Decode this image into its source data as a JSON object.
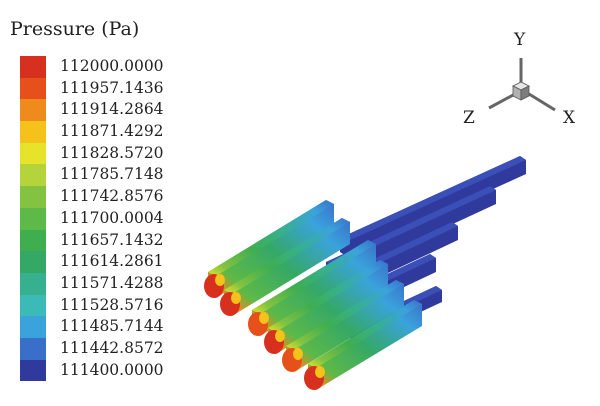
{
  "legend": {
    "title": "Pressure (Pa)",
    "entries": [
      {
        "value": "112000.0000",
        "color": "#d7301f"
      },
      {
        "value": "111957.1436",
        "color": "#e6501b"
      },
      {
        "value": "111914.2864",
        "color": "#ef8a1c"
      },
      {
        "value": "111871.4292",
        "color": "#f5c11b"
      },
      {
        "value": "111828.5720",
        "color": "#e6e32a"
      },
      {
        "value": "111785.7148",
        "color": "#b5d33a"
      },
      {
        "value": "111742.8576",
        "color": "#84c341"
      },
      {
        "value": "111700.0004",
        "color": "#5db948"
      },
      {
        "value": "111657.1432",
        "color": "#3fae4f"
      },
      {
        "value": "111614.2861",
        "color": "#35a866"
      },
      {
        "value": "111571.4288",
        "color": "#36b08e"
      },
      {
        "value": "111528.5716",
        "color": "#3cbab8"
      },
      {
        "value": "111485.7144",
        "color": "#3aa3dc"
      },
      {
        "value": "111442.8572",
        "color": "#3a6fc9"
      },
      {
        "value": "111400.0000",
        "color": "#2f3a9c"
      }
    ]
  },
  "axes": {
    "y": "Y",
    "z": "Z",
    "x": "X"
  }
}
